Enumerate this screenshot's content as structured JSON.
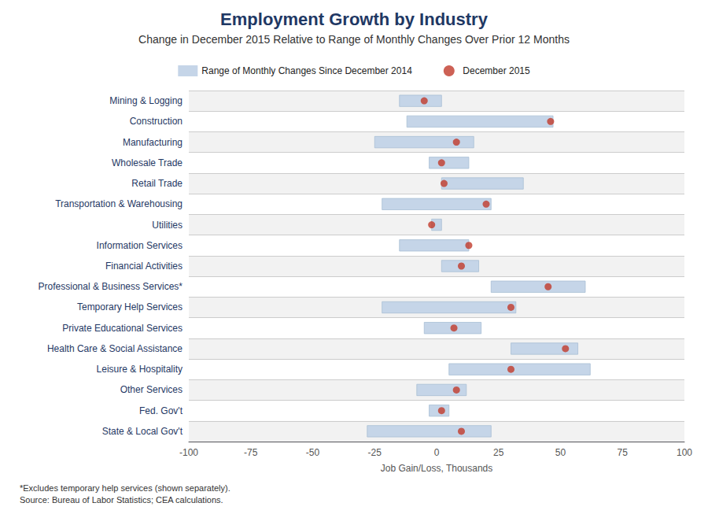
{
  "chart_data": {
    "type": "range",
    "orientation": "horizontal",
    "title": "Employment Growth by Industry",
    "subtitle": "Change in December 2015 Relative to Range of Monthly Changes Over Prior 12 Months",
    "xlabel": "Job Gain/Loss, Thousands",
    "annotations": [
      "*Excludes temporary help services (shown separately).",
      "Source: Bureau of Labor Statistics; CEA calculations."
    ],
    "xlim": [
      -100,
      100
    ],
    "xticks": [
      -100,
      -75,
      -50,
      -25,
      0,
      25,
      50,
      75,
      100
    ],
    "grid": true,
    "legend": "top",
    "categories": [
      "Mining & Logging",
      "Construction",
      "Manufacturing",
      "Wholesale Trade",
      "Retail Trade",
      "Transportation & Warehousing",
      "Utilities",
      "Information Services",
      "Financial Activities",
      "Professional & Business Services*",
      "Temporary Help Services",
      "Private Educational Services",
      "Health Care & Social Assistance",
      "Leisure & Hospitality",
      "Other Services",
      "Fed. Gov't",
      "State & Local Gov't"
    ],
    "series": [
      {
        "name": "Range of Monthly Changes Since December 2014",
        "type": "bar",
        "color": "#c5d5e8",
        "values": [
          [
            -15,
            2
          ],
          [
            -12,
            47
          ],
          [
            -25,
            15
          ],
          [
            -3,
            13
          ],
          [
            2,
            35
          ],
          [
            -22,
            22
          ],
          [
            -2,
            2
          ],
          [
            -15,
            13
          ],
          [
            2,
            17
          ],
          [
            22,
            60
          ],
          [
            -22,
            32
          ],
          [
            -5,
            18
          ],
          [
            30,
            57
          ],
          [
            5,
            62
          ],
          [
            -8,
            12
          ],
          [
            -3,
            5
          ],
          [
            -28,
            22
          ]
        ]
      },
      {
        "name": "December 2015",
        "type": "scatter",
        "color": "#c0392b",
        "values": [
          -5,
          46,
          8,
          2,
          3,
          20,
          -2,
          13,
          10,
          45,
          30,
          7,
          52,
          30,
          8,
          2,
          10
        ]
      }
    ]
  }
}
